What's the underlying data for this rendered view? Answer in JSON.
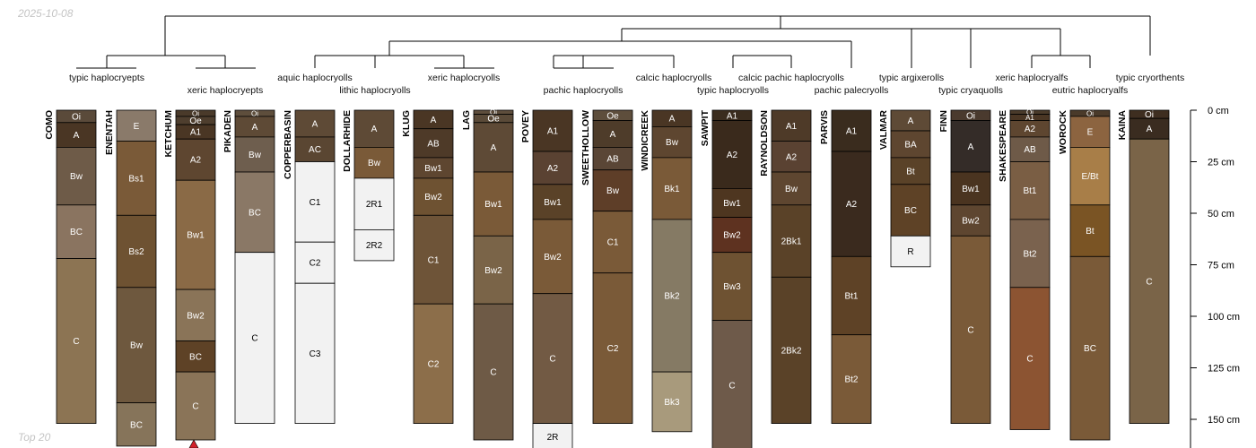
{
  "header": {
    "date": "2025-10-08"
  },
  "footer": {
    "note": "Top 20"
  },
  "depth_axis": {
    "unit": "cm",
    "ticks": [
      {
        "depth": 0,
        "label": "0 cm"
      },
      {
        "depth": 25,
        "label": "25 cm"
      },
      {
        "depth": 50,
        "label": "50 cm"
      },
      {
        "depth": 75,
        "label": "75 cm"
      },
      {
        "depth": 100,
        "label": "100 cm"
      },
      {
        "depth": 125,
        "label": "125 cm"
      },
      {
        "depth": 150,
        "label": "150 cm"
      }
    ]
  },
  "subgroup_labels": [
    "typic haplocryepts",
    "xeric haplocryepts",
    "aquic haplocryolls",
    "lithic haplocryolls",
    "xeric haplocryolls",
    "pachic haplocryolls",
    "calcic haplocryolls",
    "typic haplocryolls",
    "calcic pachic haplocryolls",
    "pachic palecryolls",
    "typic argixerolls",
    "typic cryaquolls",
    "xeric haplocryalfs",
    "eutric haplocryalfs",
    "typic cryorthents"
  ],
  "profiles": [
    {
      "name": "COMO",
      "horizons": [
        {
          "name": "Oi",
          "top": 0,
          "bottom": 6,
          "color": "#5a4a3a"
        },
        {
          "name": "A",
          "top": 6,
          "bottom": 18,
          "color": "#4a3624"
        },
        {
          "name": "Bw",
          "top": 18,
          "bottom": 46,
          "color": "#6e5b48"
        },
        {
          "name": "BC",
          "top": 46,
          "bottom": 72,
          "color": "#8a7460"
        },
        {
          "name": "C",
          "top": 72,
          "bottom": 152,
          "color": "#8c7453"
        }
      ]
    },
    {
      "name": "ENENTAH",
      "horizons": [
        {
          "name": "E",
          "top": 0,
          "bottom": 15,
          "color": "#8a7a6a"
        },
        {
          "name": "Bs1",
          "top": 15,
          "bottom": 51,
          "color": "#7a5a38"
        },
        {
          "name": "Bs2",
          "top": 51,
          "bottom": 86,
          "color": "#6e5232"
        },
        {
          "name": "Bw",
          "top": 86,
          "bottom": 142,
          "color": "#6e583e"
        },
        {
          "name": "BC",
          "top": 142,
          "bottom": 163,
          "color": "#86745a"
        }
      ]
    },
    {
      "name": "KETCHUM",
      "horizons": [
        {
          "name": "Oi",
          "top": 0,
          "bottom": 3,
          "color": "#4a3a2a"
        },
        {
          "name": "Oe",
          "top": 3,
          "bottom": 7,
          "color": "#4e3e2e"
        },
        {
          "name": "A1",
          "top": 7,
          "bottom": 14,
          "color": "#4a3624"
        },
        {
          "name": "A2",
          "top": 14,
          "bottom": 34,
          "color": "#5e4630"
        },
        {
          "name": "Bw1",
          "top": 34,
          "bottom": 87,
          "color": "#8a6a46"
        },
        {
          "name": "Bw2",
          "top": 87,
          "bottom": 112,
          "color": "#8a7458"
        },
        {
          "name": "BC",
          "top": 112,
          "bottom": 127,
          "color": "#5e4226"
        },
        {
          "name": "C",
          "top": 127,
          "bottom": 160,
          "color": "#8a7458"
        }
      ]
    },
    {
      "name": "PIKADEN",
      "horizons": [
        {
          "name": "Oi",
          "top": 0,
          "bottom": 3,
          "color": "#5e4e3c"
        },
        {
          "name": "A",
          "top": 3,
          "bottom": 13,
          "color": "#5e4a36"
        },
        {
          "name": "Bw",
          "top": 13,
          "bottom": 30,
          "color": "#6e5e4e"
        },
        {
          "name": "BC",
          "top": 30,
          "bottom": 69,
          "color": "#8a7866"
        },
        {
          "name": "C",
          "top": 69,
          "bottom": 152,
          "color": "#f2f2f2"
        }
      ]
    },
    {
      "name": "COPPERBASIN",
      "horizons": [
        {
          "name": "A",
          "top": 0,
          "bottom": 13,
          "color": "#5e4a36"
        },
        {
          "name": "AC",
          "top": 13,
          "bottom": 25,
          "color": "#5a4632"
        },
        {
          "name": "C1",
          "top": 25,
          "bottom": 64,
          "color": "#f2f2f2"
        },
        {
          "name": "C2",
          "top": 64,
          "bottom": 84,
          "color": "#f2f2f2"
        },
        {
          "name": "C3",
          "top": 84,
          "bottom": 152,
          "color": "#f2f2f2"
        }
      ]
    },
    {
      "name": "DOLLARHIDE",
      "horizons": [
        {
          "name": "A",
          "top": 0,
          "bottom": 18,
          "color": "#5e4a36"
        },
        {
          "name": "Bw",
          "top": 18,
          "bottom": 33,
          "color": "#7a5a38"
        },
        {
          "name": "2R1",
          "top": 33,
          "bottom": 58,
          "color": "#f2f2f2"
        },
        {
          "name": "2R2",
          "top": 58,
          "bottom": 73,
          "color": "#f2f2f2"
        }
      ]
    },
    {
      "name": "KLUG",
      "horizons": [
        {
          "name": "A",
          "top": 0,
          "bottom": 9,
          "color": "#4a3624"
        },
        {
          "name": "AB",
          "top": 9,
          "bottom": 23,
          "color": "#4e3a28"
        },
        {
          "name": "Bw1",
          "top": 23,
          "bottom": 33,
          "color": "#5e4630"
        },
        {
          "name": "Bw2",
          "top": 33,
          "bottom": 51,
          "color": "#6e5232"
        },
        {
          "name": "C1",
          "top": 51,
          "bottom": 94,
          "color": "#6e5438"
        },
        {
          "name": "C2",
          "top": 94,
          "bottom": 152,
          "color": "#8c6e4a"
        }
      ]
    },
    {
      "name": "LAG",
      "horizons": [
        {
          "name": "Oi",
          "top": 0,
          "bottom": 2,
          "color": "#5e4e3c"
        },
        {
          "name": "Oe",
          "top": 2,
          "bottom": 6,
          "color": "#5a4a38"
        },
        {
          "name": "A",
          "top": 6,
          "bottom": 30,
          "color": "#5e4a36"
        },
        {
          "name": "Bw1",
          "top": 30,
          "bottom": 61,
          "color": "#7a5a38"
        },
        {
          "name": "Bw2",
          "top": 61,
          "bottom": 94,
          "color": "#7a6448"
        },
        {
          "name": "C",
          "top": 94,
          "bottom": 160,
          "color": "#6e5a46"
        }
      ]
    },
    {
      "name": "POVEY",
      "horizons": [
        {
          "name": "A1",
          "top": 0,
          "bottom": 20,
          "color": "#4a3624"
        },
        {
          "name": "A2",
          "top": 20,
          "bottom": 36,
          "color": "#5a4232"
        },
        {
          "name": "Bw1",
          "top": 36,
          "bottom": 53,
          "color": "#5a4228"
        },
        {
          "name": "Bw2",
          "top": 53,
          "bottom": 89,
          "color": "#7a5a38"
        },
        {
          "name": "C",
          "top": 89,
          "bottom": 152,
          "color": "#725a44"
        },
        {
          "name": "2R",
          "top": 152,
          "bottom": 165,
          "color": "#f2f2f2"
        }
      ]
    },
    {
      "name": "SWEETHOLLOW",
      "horizons": [
        {
          "name": "Oe",
          "top": 0,
          "bottom": 5,
          "color": "#5e4e3c"
        },
        {
          "name": "A",
          "top": 5,
          "bottom": 18,
          "color": "#4e3c2a"
        },
        {
          "name": "AB",
          "top": 18,
          "bottom": 29,
          "color": "#5a4636"
        },
        {
          "name": "Bw",
          "top": 29,
          "bottom": 49,
          "color": "#5e3e28"
        },
        {
          "name": "C1",
          "top": 49,
          "bottom": 79,
          "color": "#7a5a38"
        },
        {
          "name": "C2",
          "top": 79,
          "bottom": 152,
          "color": "#7a5a38"
        }
      ]
    },
    {
      "name": "WINDICREEK",
      "horizons": [
        {
          "name": "A",
          "top": 0,
          "bottom": 8,
          "color": "#4a3624"
        },
        {
          "name": "Bw",
          "top": 8,
          "bottom": 23,
          "color": "#5e4630"
        },
        {
          "name": "Bk1",
          "top": 23,
          "bottom": 53,
          "color": "#7a5a38"
        },
        {
          "name": "Bk2",
          "top": 53,
          "bottom": 127,
          "color": "#857a64"
        },
        {
          "name": "Bk3",
          "top": 127,
          "bottom": 156,
          "color": "#a89a7c"
        }
      ]
    },
    {
      "name": "SAWPIT",
      "horizons": [
        {
          "name": "A1",
          "top": 0,
          "bottom": 5,
          "color": "#3a2c1e"
        },
        {
          "name": "A2",
          "top": 5,
          "bottom": 38,
          "color": "#3a2a1c"
        },
        {
          "name": "Bw1",
          "top": 38,
          "bottom": 52,
          "color": "#4e3620"
        },
        {
          "name": "Bw2",
          "top": 52,
          "bottom": 69,
          "color": "#5e3220"
        },
        {
          "name": "Bw3",
          "top": 69,
          "bottom": 102,
          "color": "#6e5232"
        },
        {
          "name": "C",
          "top": 102,
          "bottom": 165,
          "color": "#6e5a4a"
        }
      ]
    },
    {
      "name": "RAYNOLDSON",
      "horizons": [
        {
          "name": "A1",
          "top": 0,
          "bottom": 15,
          "color": "#4e3a28"
        },
        {
          "name": "A2",
          "top": 15,
          "bottom": 30,
          "color": "#5a4232"
        },
        {
          "name": "Bw",
          "top": 30,
          "bottom": 46,
          "color": "#5e4630"
        },
        {
          "name": "2Bk1",
          "top": 46,
          "bottom": 81,
          "color": "#5a4228"
        },
        {
          "name": "2Bk2",
          "top": 81,
          "bottom": 152,
          "color": "#5a4228"
        }
      ]
    },
    {
      "name": "PARVIS",
      "horizons": [
        {
          "name": "A1",
          "top": 0,
          "bottom": 20,
          "color": "#3a2c1e"
        },
        {
          "name": "A2",
          "top": 20,
          "bottom": 71,
          "color": "#3a2a1e"
        },
        {
          "name": "Bt1",
          "top": 71,
          "bottom": 109,
          "color": "#5e4226"
        },
        {
          "name": "Bt2",
          "top": 109,
          "bottom": 152,
          "color": "#7a5a38"
        }
      ]
    },
    {
      "name": "VALMAR",
      "horizons": [
        {
          "name": "A",
          "top": 0,
          "bottom": 10,
          "color": "#5e4a36"
        },
        {
          "name": "BA",
          "top": 10,
          "bottom": 23,
          "color": "#5e4630"
        },
        {
          "name": "Bt",
          "top": 23,
          "bottom": 36,
          "color": "#5a4228"
        },
        {
          "name": "BC",
          "top": 36,
          "bottom": 61,
          "color": "#5e4226"
        },
        {
          "name": "R",
          "top": 61,
          "bottom": 76,
          "color": "#f2f2f2"
        }
      ]
    },
    {
      "name": "FINN",
      "horizons": [
        {
          "name": "Oi",
          "top": 0,
          "bottom": 5,
          "color": "#4a3a2e"
        },
        {
          "name": "A",
          "top": 5,
          "bottom": 30,
          "color": "#342c28"
        },
        {
          "name": "Bw1",
          "top": 30,
          "bottom": 46,
          "color": "#4a3420"
        },
        {
          "name": "Bw2",
          "top": 46,
          "bottom": 61,
          "color": "#5e4630"
        },
        {
          "name": "C",
          "top": 61,
          "bottom": 152,
          "color": "#7a5a38"
        }
      ]
    },
    {
      "name": "SHAKESPEARE",
      "horizons": [
        {
          "name": "Oi",
          "top": 0,
          "bottom": 2,
          "color": "#4a3a2a"
        },
        {
          "name": "A1",
          "top": 2,
          "bottom": 5,
          "color": "#4a3624"
        },
        {
          "name": "A2",
          "top": 5,
          "bottom": 13,
          "color": "#5e4630"
        },
        {
          "name": "AB",
          "top": 13,
          "bottom": 25,
          "color": "#6e5a48"
        },
        {
          "name": "Bt1",
          "top": 25,
          "bottom": 53,
          "color": "#7a5e44"
        },
        {
          "name": "Bt2",
          "top": 53,
          "bottom": 86,
          "color": "#7a624e"
        },
        {
          "name": "C",
          "top": 86,
          "bottom": 155,
          "color": "#8c5432"
        }
      ]
    },
    {
      "name": "WOROCK",
      "horizons": [
        {
          "name": "Oi",
          "top": 0,
          "bottom": 3,
          "color": "#4a3a2a"
        },
        {
          "name": "E",
          "top": 3,
          "bottom": 18,
          "color": "#8c6440"
        },
        {
          "name": "E/Bt",
          "top": 18,
          "bottom": 46,
          "color": "#a87e48"
        },
        {
          "name": "Bt",
          "top": 46,
          "bottom": 71,
          "color": "#7a5424"
        },
        {
          "name": "BC",
          "top": 71,
          "bottom": 160,
          "color": "#7a5a38"
        }
      ]
    },
    {
      "name": "KAINA",
      "horizons": [
        {
          "name": "Oi",
          "top": 0,
          "bottom": 4,
          "color": "#3e2e20"
        },
        {
          "name": "A",
          "top": 4,
          "bottom": 14,
          "color": "#3a2c20"
        },
        {
          "name": "C",
          "top": 14,
          "bottom": 152,
          "color": "#7a6448"
        }
      ]
    }
  ]
}
